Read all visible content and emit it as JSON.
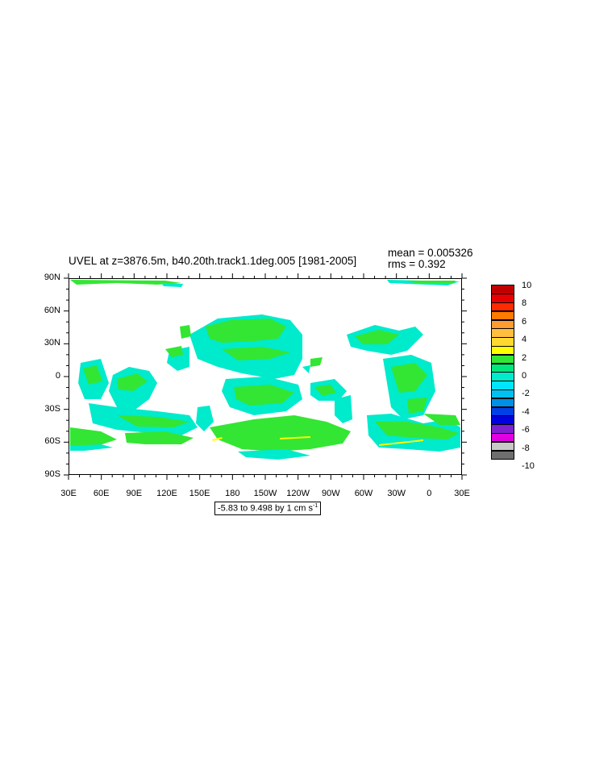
{
  "title": "UVEL at z=3876.5m, b40.20th.track1.1deg.005 [1981-2005]",
  "stats": {
    "mean": "mean = 0.005326",
    "rms": "rms = 0.392"
  },
  "range_label": {
    "prefix": "-5.83 to 9.498 by 1 cm s",
    "superscript": "-1"
  },
  "lat_labels": [
    "90N",
    "60N",
    "30N",
    "0",
    "30S",
    "60S",
    "90S"
  ],
  "lon_labels": [
    "30E",
    "60E",
    "90E",
    "120E",
    "150E",
    "180",
    "150W",
    "120W",
    "90W",
    "60W",
    "30W",
    "0",
    "30E"
  ],
  "colorbar": {
    "labels": [
      "10",
      "8",
      "6",
      "4",
      "2",
      "0",
      "-2",
      "-4",
      "-6",
      "-8",
      "-10"
    ],
    "colors": [
      "#c00000",
      "#e60000",
      "#ff2a00",
      "#ff7a00",
      "#ff9c30",
      "#ffbe40",
      "#ffd930",
      "#ffff00",
      "#33e633",
      "#00e67a",
      "#00eacc",
      "#00e5ff",
      "#00c0f0",
      "#0090e6",
      "#0040e6",
      "#0000e0",
      "#8020d0",
      "#e000e0",
      "#c8c8c8",
      "#6e6e6e"
    ]
  },
  "map_colors": {
    "green": "#33e633",
    "cyan": "#00eacc",
    "yellow": "#ffff00"
  }
}
